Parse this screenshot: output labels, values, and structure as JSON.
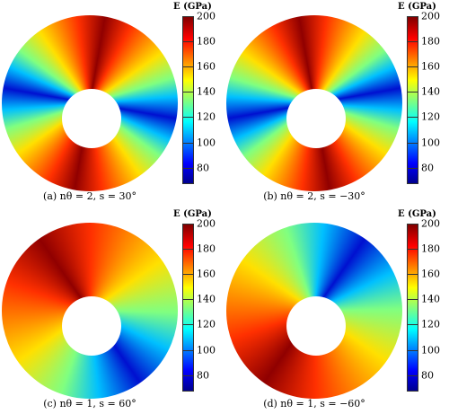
{
  "chart_data": [
    {
      "type": "contour",
      "colorbar_label": "E (GPa)",
      "caption": "(a) nθ = 2, s = 30°",
      "clim": [
        67,
        200
      ],
      "cticks": [
        80,
        100,
        120,
        140,
        160,
        180,
        200
      ]
    },
    {
      "type": "contour",
      "colorbar_label": "E (GPa)",
      "caption": "(b) nθ = 2, s = −30°",
      "clim": [
        67,
        200
      ],
      "cticks": [
        80,
        100,
        120,
        140,
        160,
        180,
        200
      ]
    },
    {
      "type": "contour",
      "colorbar_label": "E (GPa)",
      "caption": "(c) nθ = 1, s = 60°",
      "clim": [
        67,
        200
      ],
      "cticks": [
        80,
        100,
        120,
        140,
        160,
        180,
        200
      ]
    },
    {
      "type": "contour",
      "colorbar_label": "E (GPa)",
      "caption": "(d) nθ = 1, s = −60°",
      "clim": [
        67,
        200
      ],
      "cticks": [
        80,
        100,
        120,
        140,
        160,
        180,
        200
      ]
    }
  ]
}
